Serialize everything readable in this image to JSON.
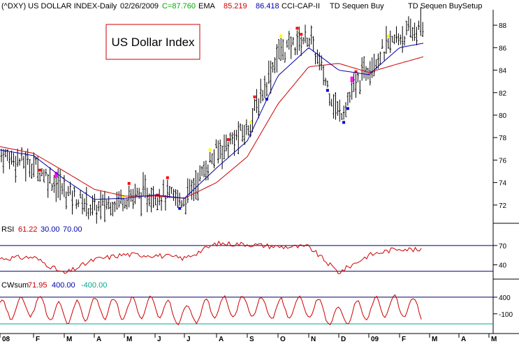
{
  "header": {
    "symbol": "(^DXY) US DOLLAR INDEX-Daily",
    "date": "02/26/2009",
    "close": "C=87.760",
    "ema_label": "EMA",
    "ema1": "85.219",
    "ema2": "86.418",
    "study": "CCI-CAP-II",
    "td_buy": "TD Sequen Buy",
    "td_setup": "TD Sequen BuySetup"
  },
  "title_box": "US Dollar Index",
  "rsi_header": {
    "label": "RSI",
    "value": "61.22",
    "low": "30.00",
    "high": "70.00"
  },
  "cw_header": {
    "label": "CWsum",
    "value": "71.95",
    "high": "400.00",
    "low": "-400.00"
  },
  "colors": {
    "bars": "#000000",
    "ema_fast": "#0000aa",
    "ema_slow": "#cc0000",
    "rsi": "#cc0000",
    "rsi_overbought": "#cc00cc",
    "rsi_oversold": "#00aa00",
    "cw": "#cc0000",
    "td_red": "#ff0000",
    "td_yellow": "#ffff00",
    "td_blue": "#0000cc",
    "td_magenta": "#ff00ff",
    "close_green": "#00aa00",
    "ema1_red": "#cc0000",
    "ema2_blue": "#0000aa"
  },
  "chart_data": [
    {
      "type": "line",
      "name": "price-panel",
      "title": "(^DXY) US DOLLAR INDEX-Daily",
      "y_ticks": [
        "72",
        "74",
        "76",
        "78",
        "80",
        "82",
        "84",
        "86",
        "88"
      ],
      "ylim": [
        70.5,
        89
      ],
      "x": [
        "2008-01",
        "2008-02",
        "2008-03",
        "2008-04",
        "2008-05",
        "2008-06",
        "2008-07",
        "2008-08",
        "2008-09",
        "2008-10",
        "2008-11",
        "2008-12",
        "2009-01",
        "2009-02",
        "2009-02-26"
      ],
      "series": [
        {
          "values": [
            76.5,
            75.6,
            73.3,
            71.6,
            72.7,
            73.0,
            72.4,
            76.7,
            78.7,
            85.5,
            87.0,
            80.0,
            84.5,
            87.0,
            87.76
          ]
        },
        {
          "name": "EMA 86.418",
          "values": [
            76.9,
            76.4,
            74.3,
            72.5,
            72.6,
            72.9,
            72.6,
            75.3,
            77.7,
            83.5,
            86.0,
            84.0,
            83.6,
            86.0,
            86.42
          ]
        },
        {
          "name": "EMA 85.219",
          "values": [
            77.2,
            76.6,
            75.0,
            73.4,
            72.8,
            72.8,
            72.6,
            74.0,
            76.3,
            81.0,
            84.3,
            84.6,
            83.8,
            84.6,
            85.22
          ]
        }
      ]
    },
    {
      "type": "line",
      "name": "rsi-panel",
      "title": "RSI",
      "y_ticks": [
        "40",
        "70"
      ],
      "ylim": [
        20,
        85
      ],
      "reference_lines": [
        30,
        70
      ],
      "x": [
        "2008-01",
        "2008-02",
        "2008-03",
        "2008-04",
        "2008-05",
        "2008-06",
        "2008-07",
        "2008-08",
        "2008-09",
        "2008-10",
        "2008-11",
        "2008-12",
        "2009-01",
        "2009-02",
        "2009-02-26"
      ],
      "values": [
        50,
        52,
        26,
        48,
        56,
        55,
        50,
        73,
        72,
        68,
        68,
        28,
        55,
        66,
        61.22
      ]
    },
    {
      "type": "line",
      "name": "cwsum-panel",
      "title": "CWsum",
      "y_ticks": [
        "400",
        "-100"
      ],
      "ylim": [
        -650,
        650
      ],
      "reference_lines": [
        400,
        -400
      ],
      "x": [
        "2008-01",
        "2008-02",
        "2008-03",
        "2008-04",
        "2008-05",
        "2008-06",
        "2008-07",
        "2008-08",
        "2008-09",
        "2008-10",
        "2008-11",
        "2008-12",
        "2009-01",
        "2009-02",
        "2009-02-26"
      ],
      "values": [
        0,
        400,
        -300,
        200,
        100,
        300,
        -400,
        250,
        330,
        120,
        300,
        -480,
        200,
        320,
        71.95
      ]
    }
  ],
  "x_axis": {
    "months": [
      {
        "label": "08",
        "x": "2008-01"
      },
      {
        "label": "F",
        "x": "2008-02"
      },
      {
        "label": "M",
        "x": "2008-03"
      },
      {
        "label": "A",
        "x": "2008-04"
      },
      {
        "label": "M",
        "x": "2008-05"
      },
      {
        "label": "J",
        "x": "2008-06"
      },
      {
        "label": "J",
        "x": "2008-07"
      },
      {
        "label": "A",
        "x": "2008-08"
      },
      {
        "label": "S",
        "x": "2008-09"
      },
      {
        "label": "O",
        "x": "2008-10"
      },
      {
        "label": "N",
        "x": "2008-11"
      },
      {
        "label": "D",
        "x": "2008-12"
      },
      {
        "label": "09",
        "x": "2009-01"
      },
      {
        "label": "F",
        "x": "2009-02"
      },
      {
        "label": "M",
        "x": "2009-03"
      },
      {
        "label": "A",
        "x": "2009-04"
      },
      {
        "label": "M",
        "x": "2009-05"
      }
    ]
  }
}
